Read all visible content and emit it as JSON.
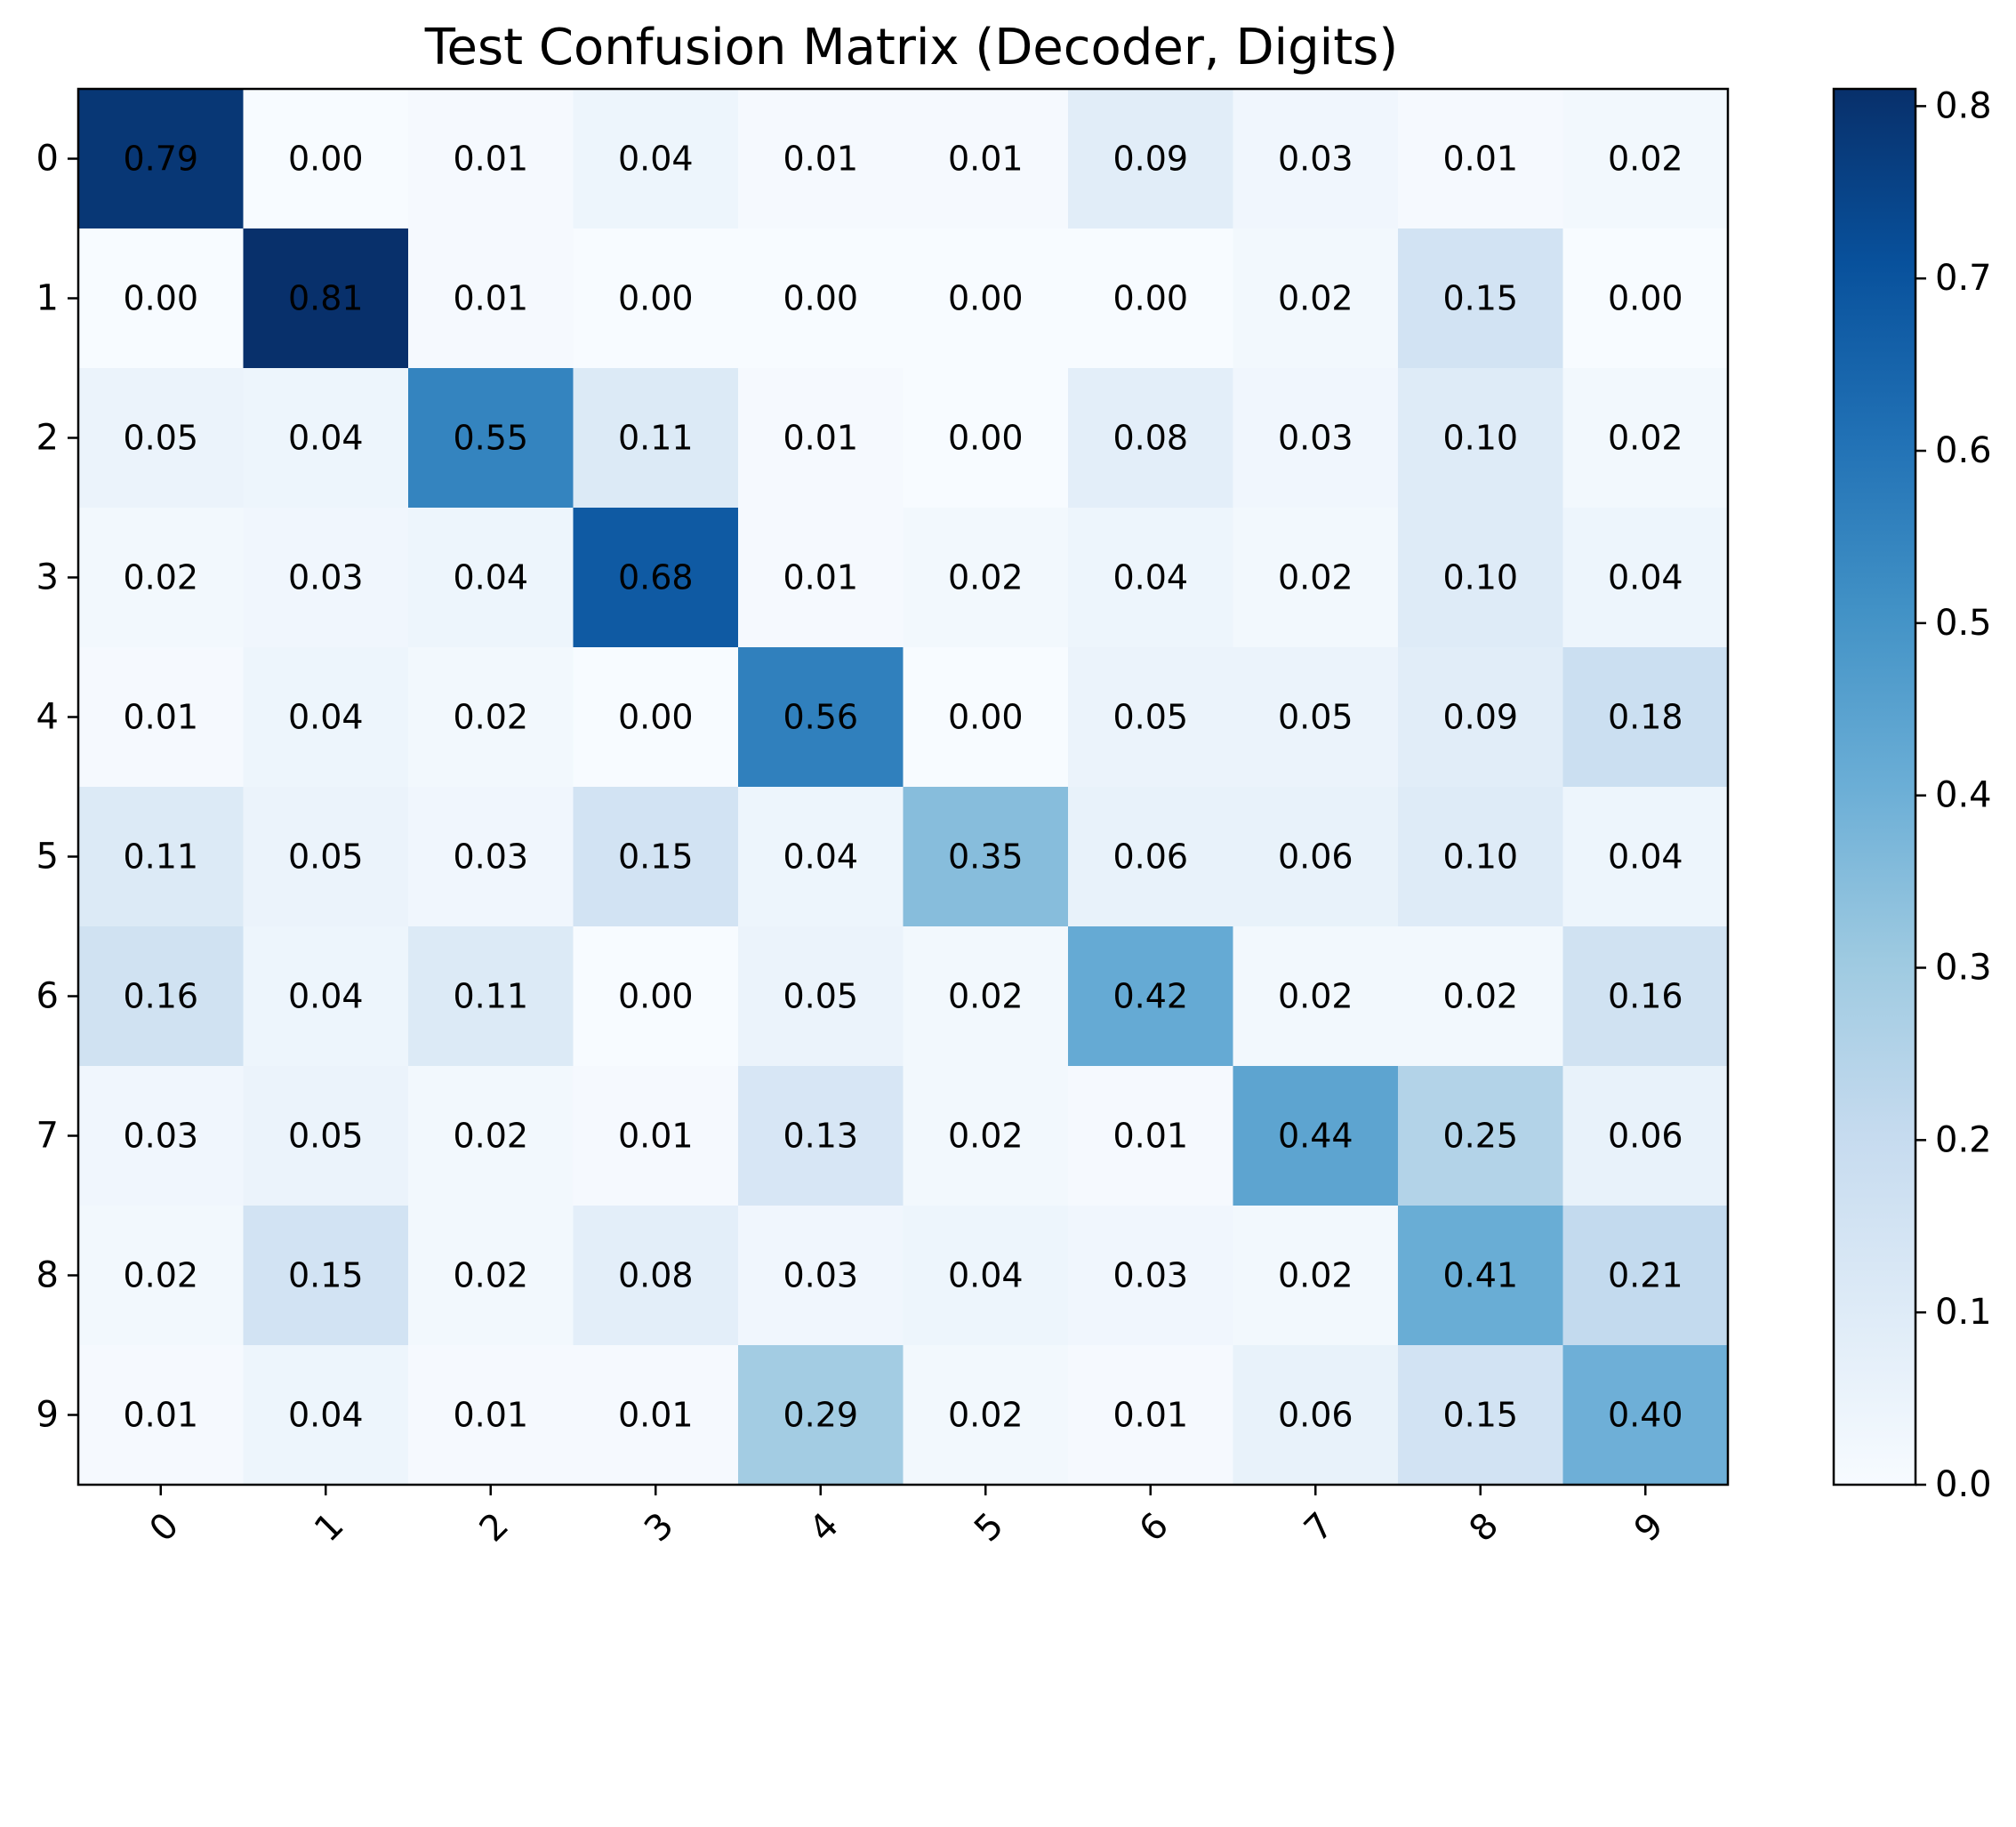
{
  "chart_data": {
    "type": "heatmap",
    "title": "Test Confusion Matrix (Decoder, Digits)",
    "xlabel": "",
    "ylabel": "",
    "x_tick_labels": [
      "0",
      "1",
      "2",
      "3",
      "4",
      "5",
      "6",
      "7",
      "8",
      "9"
    ],
    "y_tick_labels": [
      "0",
      "1",
      "2",
      "3",
      "4",
      "5",
      "6",
      "7",
      "8",
      "9"
    ],
    "values": [
      [
        0.79,
        0.0,
        0.01,
        0.04,
        0.01,
        0.01,
        0.09,
        0.03,
        0.01,
        0.02
      ],
      [
        0.0,
        0.81,
        0.01,
        0.0,
        0.0,
        0.0,
        0.0,
        0.02,
        0.15,
        0.0
      ],
      [
        0.05,
        0.04,
        0.55,
        0.11,
        0.01,
        0.0,
        0.08,
        0.03,
        0.1,
        0.02
      ],
      [
        0.02,
        0.03,
        0.04,
        0.68,
        0.01,
        0.02,
        0.04,
        0.02,
        0.1,
        0.04
      ],
      [
        0.01,
        0.04,
        0.02,
        0.0,
        0.56,
        0.0,
        0.05,
        0.05,
        0.09,
        0.18
      ],
      [
        0.11,
        0.05,
        0.03,
        0.15,
        0.04,
        0.35,
        0.06,
        0.06,
        0.1,
        0.04
      ],
      [
        0.16,
        0.04,
        0.11,
        0.0,
        0.05,
        0.02,
        0.42,
        0.02,
        0.02,
        0.16
      ],
      [
        0.03,
        0.05,
        0.02,
        0.01,
        0.13,
        0.02,
        0.01,
        0.44,
        0.25,
        0.06
      ],
      [
        0.02,
        0.15,
        0.02,
        0.08,
        0.03,
        0.04,
        0.03,
        0.02,
        0.41,
        0.21
      ],
      [
        0.01,
        0.04,
        0.01,
        0.01,
        0.29,
        0.02,
        0.01,
        0.06,
        0.15,
        0.4
      ]
    ],
    "value_format": "0.00",
    "colormap": "Blues",
    "color_range": [
      0.0,
      0.81
    ],
    "colorbar": {
      "ticks": [
        0.0,
        0.1,
        0.2,
        0.3,
        0.4,
        0.5,
        0.6,
        0.7,
        0.8
      ],
      "tick_labels": [
        "0.0",
        "0.1",
        "0.2",
        "0.3",
        "0.4",
        "0.5",
        "0.6",
        "0.7",
        "0.8"
      ],
      "placement": "right"
    },
    "x_tick_rotation_deg": 45,
    "grid": false
  }
}
